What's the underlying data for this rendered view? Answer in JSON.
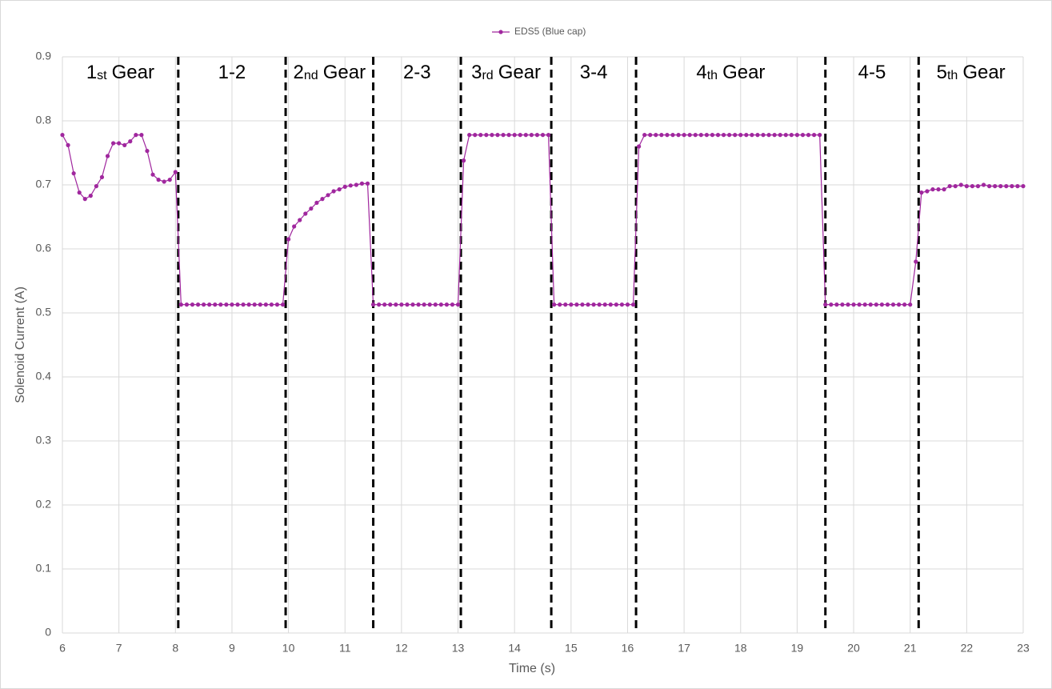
{
  "chart_data": {
    "type": "line",
    "xlabel": "Time (s)",
    "ylabel": "Solenoid Current (A)",
    "xlim": [
      6,
      23
    ],
    "ylim": [
      0,
      0.9
    ],
    "xticks": [
      6,
      7,
      8,
      9,
      10,
      11,
      12,
      13,
      14,
      15,
      16,
      17,
      18,
      19,
      20,
      21,
      22,
      23
    ],
    "yticks": [
      0,
      0.1,
      0.2,
      0.3,
      0.4,
      0.5,
      0.6,
      0.7,
      0.8,
      0.9
    ],
    "grid": true,
    "legend": "top",
    "x": [
      6.0,
      6.1,
      6.2,
      6.3,
      6.4,
      6.5,
      6.6,
      6.7,
      6.8,
      6.9,
      7.0,
      7.1,
      7.2,
      7.3,
      7.4,
      7.5,
      7.6,
      7.7,
      7.8,
      7.9,
      8.0,
      8.1,
      8.2,
      8.3,
      8.4,
      8.5,
      8.6,
      8.7,
      8.8,
      8.9,
      9.0,
      9.1,
      9.2,
      9.3,
      9.4,
      9.5,
      9.6,
      9.7,
      9.8,
      9.9,
      10.0,
      10.1,
      10.2,
      10.3,
      10.4,
      10.5,
      10.6,
      10.7,
      10.8,
      10.9,
      11.0,
      11.1,
      11.2,
      11.3,
      11.4,
      11.5,
      11.6,
      11.7,
      11.8,
      11.9,
      12.0,
      12.1,
      12.2,
      12.3,
      12.4,
      12.5,
      12.6,
      12.7,
      12.8,
      12.9,
      13.0,
      13.1,
      13.2,
      13.3,
      13.4,
      13.5,
      13.6,
      13.7,
      13.8,
      13.9,
      14.0,
      14.1,
      14.2,
      14.3,
      14.4,
      14.5,
      14.6,
      14.7,
      14.8,
      14.9,
      15.0,
      15.1,
      15.2,
      15.3,
      15.4,
      15.5,
      15.6,
      15.7,
      15.8,
      15.9,
      16.0,
      16.1,
      16.2,
      16.3,
      16.4,
      16.5,
      16.6,
      16.7,
      16.8,
      16.9,
      17.0,
      17.1,
      17.2,
      17.3,
      17.4,
      17.5,
      17.6,
      17.7,
      17.8,
      17.9,
      18.0,
      18.1,
      18.2,
      18.3,
      18.4,
      18.5,
      18.6,
      18.7,
      18.8,
      18.9,
      19.0,
      19.1,
      19.2,
      19.3,
      19.4,
      19.5,
      19.6,
      19.7,
      19.8,
      19.9,
      20.0,
      20.1,
      20.2,
      20.3,
      20.4,
      20.5,
      20.6,
      20.7,
      20.8,
      20.9,
      21.0,
      21.1,
      21.2,
      21.3,
      21.4,
      21.5,
      21.6,
      21.7,
      21.8,
      21.9,
      22.0,
      22.1,
      22.2,
      22.3,
      22.4,
      22.5,
      22.6,
      22.7,
      22.8,
      22.9,
      23.0
    ],
    "series": [
      {
        "name": "EDS5 (Blue cap)",
        "color": "#a0279e",
        "values": [
          0.778,
          0.762,
          0.718,
          0.688,
          0.678,
          0.683,
          0.698,
          0.712,
          0.745,
          0.765,
          0.765,
          0.762,
          0.768,
          0.778,
          0.778,
          0.753,
          0.716,
          0.708,
          0.705,
          0.708,
          0.72,
          0.513,
          0.513,
          0.513,
          0.513,
          0.513,
          0.513,
          0.513,
          0.513,
          0.513,
          0.513,
          0.513,
          0.513,
          0.513,
          0.513,
          0.513,
          0.513,
          0.513,
          0.513,
          0.513,
          0.615,
          0.635,
          0.645,
          0.655,
          0.663,
          0.672,
          0.678,
          0.684,
          0.69,
          0.693,
          0.697,
          0.699,
          0.7,
          0.702,
          0.702,
          0.513,
          0.513,
          0.513,
          0.513,
          0.513,
          0.513,
          0.513,
          0.513,
          0.513,
          0.513,
          0.513,
          0.513,
          0.513,
          0.513,
          0.513,
          0.513,
          0.738,
          0.778,
          0.778,
          0.778,
          0.778,
          0.778,
          0.778,
          0.778,
          0.778,
          0.778,
          0.778,
          0.778,
          0.778,
          0.778,
          0.778,
          0.778,
          0.513,
          0.513,
          0.513,
          0.513,
          0.513,
          0.513,
          0.513,
          0.513,
          0.513,
          0.513,
          0.513,
          0.513,
          0.513,
          0.513,
          0.513,
          0.76,
          0.778,
          0.778,
          0.778,
          0.778,
          0.778,
          0.778,
          0.778,
          0.778,
          0.778,
          0.778,
          0.778,
          0.778,
          0.778,
          0.778,
          0.778,
          0.778,
          0.778,
          0.778,
          0.778,
          0.778,
          0.778,
          0.778,
          0.778,
          0.778,
          0.778,
          0.778,
          0.778,
          0.778,
          0.778,
          0.778,
          0.778,
          0.778,
          0.513,
          0.513,
          0.513,
          0.513,
          0.513,
          0.513,
          0.513,
          0.513,
          0.513,
          0.513,
          0.513,
          0.513,
          0.513,
          0.513,
          0.513,
          0.513,
          0.58,
          0.688,
          0.69,
          0.693,
          0.693,
          0.693,
          0.698,
          0.698,
          0.7,
          0.698,
          0.698,
          0.698,
          0.7,
          0.698,
          0.698,
          0.698,
          0.698,
          0.698,
          0.698,
          0.698
        ]
      }
    ],
    "shift_lines": [
      8.05,
      9.95,
      11.5,
      13.05,
      14.65,
      16.15,
      19.5,
      21.15
    ],
    "regions": [
      [
        "1",
        "st",
        "Gear"
      ],
      [
        "1-2"
      ],
      [
        "2",
        "nd",
        "Gear"
      ],
      [
        "2-3"
      ],
      [
        "3",
        "rd",
        "Gear"
      ],
      [
        "3-4"
      ],
      [
        "4",
        "th",
        "Gear"
      ],
      [
        "4-5"
      ],
      [
        "5",
        "th",
        "Gear"
      ]
    ]
  }
}
